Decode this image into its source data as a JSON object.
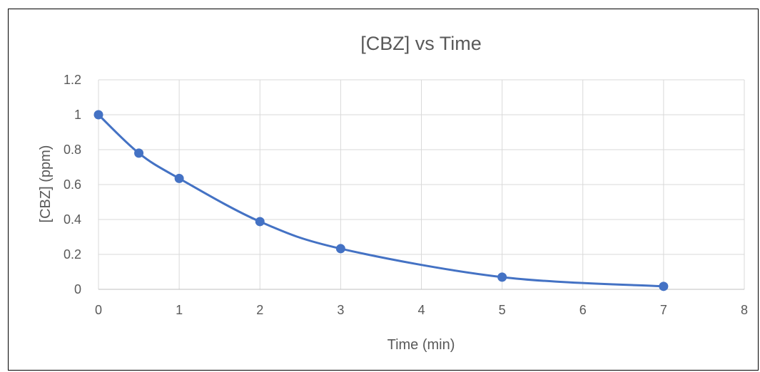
{
  "chart_data": {
    "type": "scatter",
    "title": "[CBZ] vs Time",
    "xlabel": "Time (min)",
    "ylabel": "[CBZ] (ppm)",
    "xlim": [
      0,
      8
    ],
    "ylim": [
      0,
      1.2
    ],
    "xticks": [
      0,
      1,
      2,
      3,
      4,
      5,
      6,
      7,
      8
    ],
    "yticks": [
      0,
      0.2,
      0.4,
      0.6,
      0.8,
      1,
      1.2
    ],
    "x_tick_labels": [
      "0",
      "1",
      "2",
      "3",
      "4",
      "5",
      "6",
      "7",
      "8"
    ],
    "y_tick_labels": [
      "0",
      "0.2",
      "0.4",
      "0.6",
      "0.8",
      "1",
      "1.2"
    ],
    "grid": true,
    "legend": "none",
    "smooth_line": true,
    "series_color": "#4472C4",
    "series": [
      {
        "x": [
          0,
          0.5,
          1,
          2,
          3,
          5,
          7
        ],
        "y": [
          1.0,
          0.78,
          0.635,
          0.388,
          0.233,
          0.07,
          0.017
        ]
      }
    ]
  }
}
